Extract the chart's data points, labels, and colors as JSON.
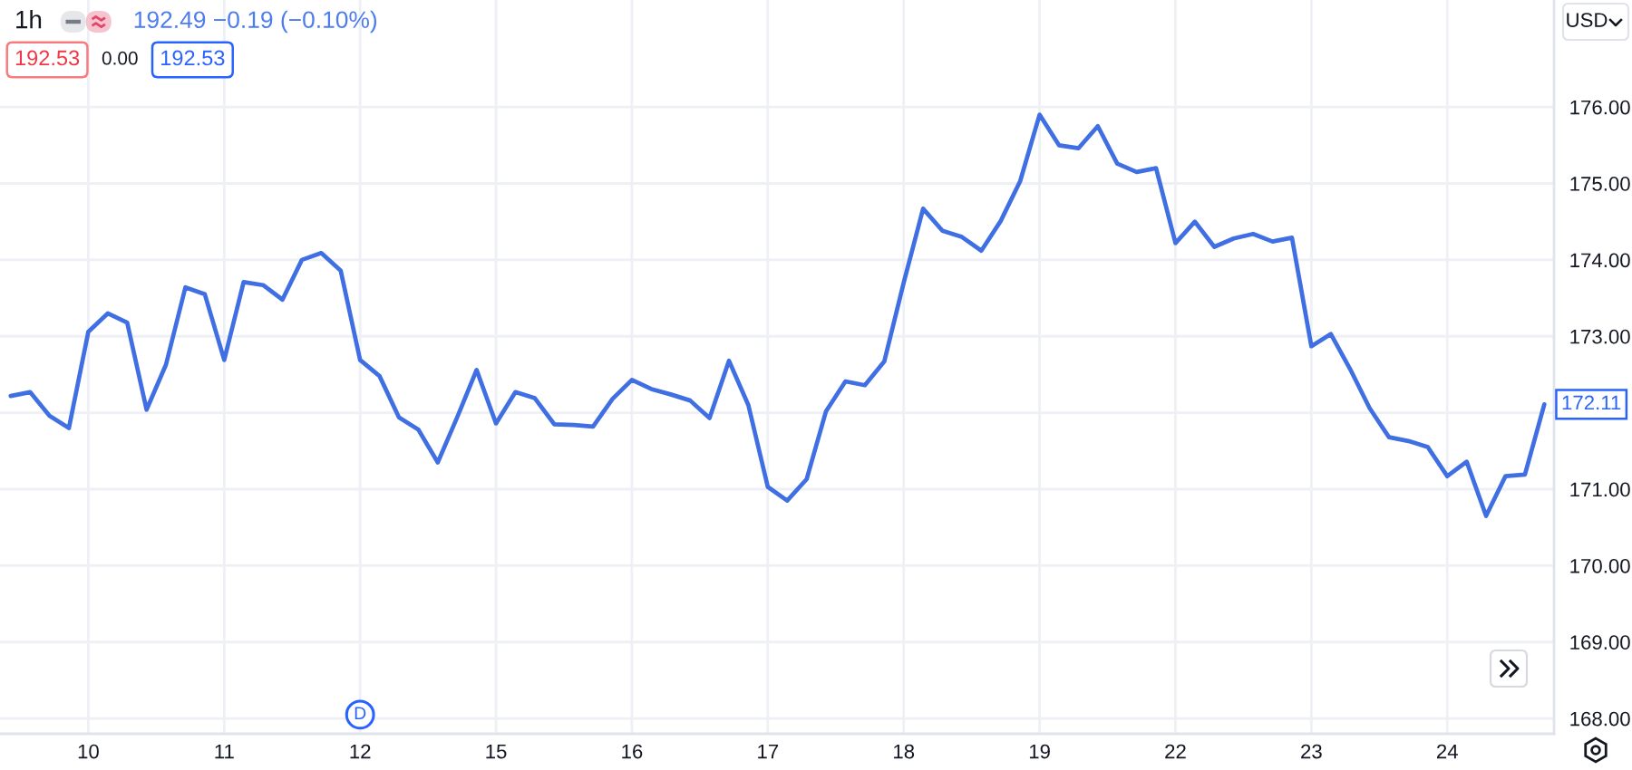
{
  "chart_data": {
    "type": "line",
    "title": "1h",
    "subtitle": "192.49 −0.19 (−0.10%)",
    "ylabel": "USD",
    "categories": [
      null,
      null,
      null,
      null,
      "10",
      null,
      null,
      null,
      null,
      null,
      null,
      "11",
      null,
      null,
      null,
      null,
      null,
      null,
      "12",
      null,
      null,
      null,
      null,
      null,
      null,
      "15",
      null,
      null,
      null,
      null,
      null,
      null,
      "16",
      null,
      null,
      null,
      null,
      null,
      null,
      "17",
      null,
      null,
      null,
      null,
      null,
      null,
      "18",
      null,
      null,
      null,
      null,
      null,
      null,
      "19",
      null,
      null,
      null,
      null,
      null,
      null,
      "22",
      null,
      null,
      null,
      null,
      null,
      null,
      "23",
      null,
      null,
      null,
      null,
      null,
      null,
      "24",
      null,
      null,
      null,
      null,
      null
    ],
    "series": [
      {
        "color": "#3f6fe3",
        "values": [
          172.22,
          172.27,
          171.96,
          171.8,
          173.06,
          173.3,
          173.18,
          172.04,
          172.63,
          173.64,
          173.55,
          172.69,
          173.71,
          173.67,
          173.48,
          174.0,
          174.09,
          173.86,
          172.69,
          172.48,
          171.94,
          171.78,
          171.35,
          171.94,
          172.56,
          171.86,
          172.27,
          172.19,
          171.85,
          171.84,
          171.82,
          172.18,
          172.43,
          172.31,
          172.24,
          172.16,
          171.93,
          172.68,
          172.1,
          171.03,
          170.85,
          171.13,
          172.02,
          172.41,
          172.36,
          172.67,
          173.7,
          174.67,
          174.38,
          174.3,
          174.12,
          174.51,
          175.03,
          175.9,
          175.5,
          175.46,
          175.75,
          175.26,
          175.15,
          175.2,
          174.22,
          174.5,
          174.17,
          174.28,
          174.34,
          174.24,
          174.29,
          172.87,
          173.03,
          172.57,
          172.06,
          171.68,
          171.63,
          171.55,
          171.17,
          171.36,
          170.65,
          171.17,
          171.19,
          172.11
        ]
      }
    ],
    "ylim": [
      167.8,
      177.4
    ],
    "yticks": [
      {
        "value": 168,
        "label": "168.00"
      },
      {
        "value": 169,
        "label": "169.00"
      },
      {
        "value": 170,
        "label": "170.00"
      },
      {
        "value": 171,
        "label": "171.00"
      },
      {
        "value": 172,
        "label": null
      },
      {
        "value": 173,
        "label": "173.00"
      },
      {
        "value": 174,
        "label": "174.00"
      },
      {
        "value": 175,
        "label": "175.00"
      },
      {
        "value": 176,
        "label": "176.00"
      }
    ],
    "grid": true,
    "annotations": [
      "192.53",
      "0.00",
      "192.53",
      {
        "text": "D",
        "x": "12"
      },
      {
        "text": "172.11",
        "y": 172.11
      }
    ]
  }
}
